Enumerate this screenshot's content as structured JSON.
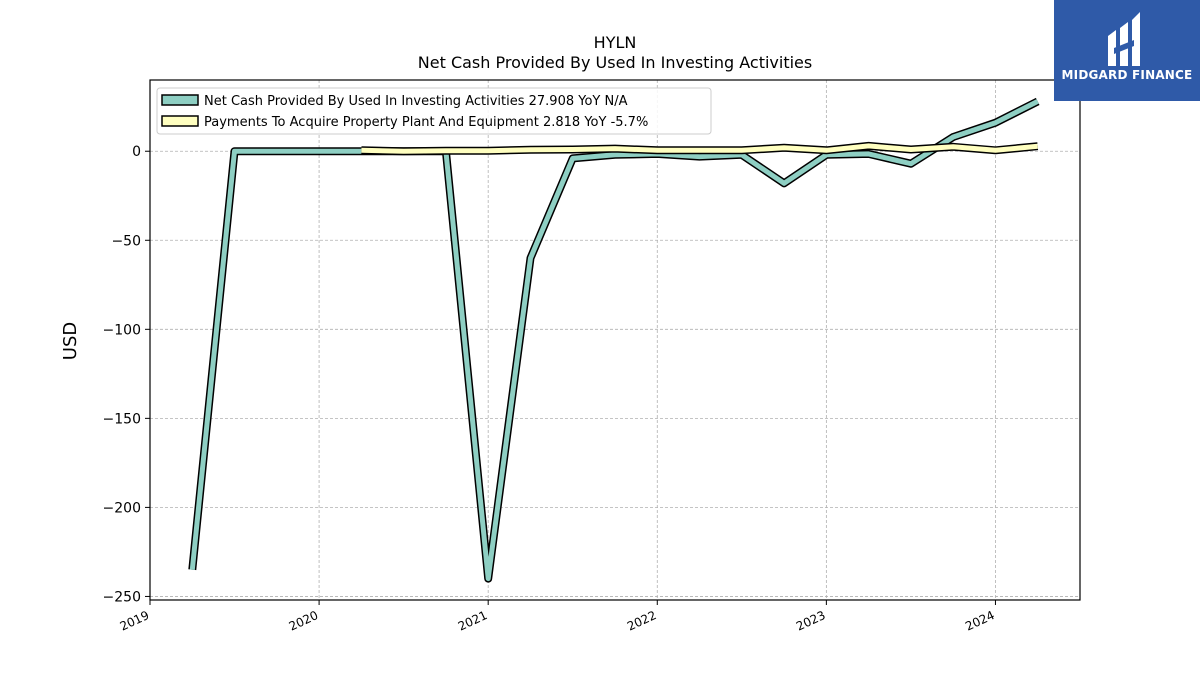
{
  "chart_data": {
    "type": "line",
    "title": "HYLN",
    "subtitle": "Net Cash Provided By Used In Investing Activities",
    "ylabel": "USD",
    "xlabel": "",
    "ylim": [
      -252,
      40
    ],
    "xlim": [
      2019.0,
      2024.5
    ],
    "yticks": [
      0,
      -50,
      -100,
      -150,
      -200,
      -250
    ],
    "ytick_labels": [
      "0",
      "−50",
      "−100",
      "−150",
      "−200",
      "−250"
    ],
    "xticks": [
      2019,
      2020,
      2021,
      2022,
      2023,
      2024
    ],
    "xtick_labels": [
      "2019",
      "2020",
      "2021",
      "2022",
      "2023",
      "2024"
    ],
    "grid": true,
    "legend_position": "top-left",
    "series": [
      {
        "name": "Net Cash Provided By Used In Investing Activities  27.908 YoY N/A",
        "color": "#8ecfc3",
        "x": [
          2019.25,
          2019.5,
          2019.75,
          2020.0,
          2020.25,
          2020.5,
          2020.75,
          2021.0,
          2021.25,
          2021.5,
          2021.75,
          2022.0,
          2022.25,
          2022.5,
          2022.75,
          2023.0,
          2023.25,
          2023.5,
          2023.75,
          2024.0,
          2024.25
        ],
        "values": [
          -235,
          0,
          0,
          0,
          0,
          0,
          0,
          -240,
          -60,
          -4,
          -2,
          -1.5,
          -3,
          -2,
          -18,
          -2,
          -1.5,
          -7,
          8,
          16,
          28
        ]
      },
      {
        "name": "Payments To Acquire Property Plant And Equipment  2.818 YoY -5.7%",
        "color": "#ffffc0",
        "x": [
          2020.25,
          2020.5,
          2020.75,
          2021.0,
          2021.25,
          2021.5,
          2021.75,
          2022.0,
          2022.25,
          2022.5,
          2022.75,
          2023.0,
          2023.25,
          2023.5,
          2023.75,
          2024.0,
          2024.25
        ],
        "values": [
          0.5,
          0,
          0.3,
          0.3,
          0.8,
          1,
          1.5,
          0.5,
          0.5,
          0.5,
          2,
          0.5,
          3,
          1,
          2.5,
          0.5,
          2.8
        ]
      }
    ]
  },
  "logo": {
    "text": "MIDGARD FINANCE",
    "background": "#2f5aa8"
  }
}
